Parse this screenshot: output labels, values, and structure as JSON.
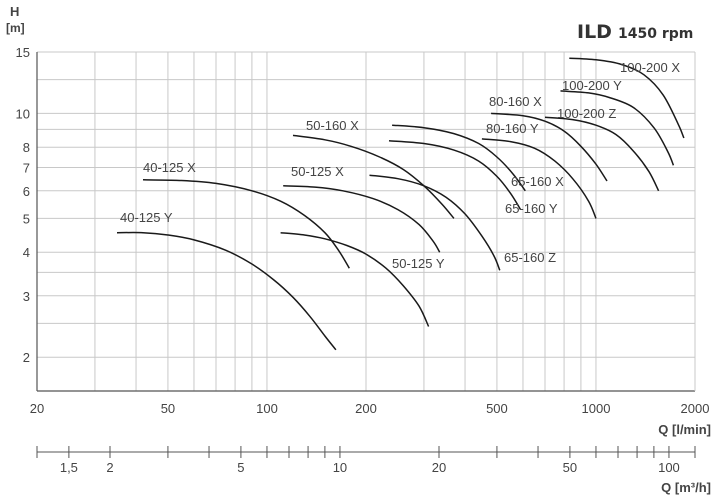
{
  "chart_data": {
    "type": "line",
    "title": "ILD",
    "subtitle": "1450 rpm",
    "ylabel": "H",
    "yunit": "[m]",
    "xlabel": "Q [l/min]",
    "x2label": "Q [m³/h]",
    "xscale": "log",
    "yscale": "log",
    "xlim": [
      20,
      2000
    ],
    "ylim": [
      1.6,
      15
    ],
    "x2lim": [
      1.2,
      120
    ],
    "grid": true,
    "xticks": [
      "20",
      "50",
      "100",
      "200",
      "500",
      "1000",
      "2000"
    ],
    "yticks": [
      "2",
      "3",
      "4",
      "5",
      "6",
      "7",
      "8",
      "10",
      "15"
    ],
    "x2ticks": [
      "1,5",
      "2",
      "5",
      "10",
      "20",
      "50",
      "100"
    ],
    "series": [
      {
        "name": "40-125 Y",
        "x": [
          35,
          42,
          50,
          60,
          75,
          90,
          105,
          120,
          135,
          150,
          162
        ],
        "y": [
          4.55,
          4.55,
          4.48,
          4.34,
          4.05,
          3.7,
          3.33,
          2.97,
          2.62,
          2.3,
          2.1
        ]
      },
      {
        "name": "40-125 X",
        "x": [
          42,
          55,
          70,
          90,
          110,
          130,
          150,
          165,
          178
        ],
        "y": [
          6.45,
          6.42,
          6.3,
          6.0,
          5.6,
          5.1,
          4.55,
          4.05,
          3.6
        ]
      },
      {
        "name": "50-125 Y",
        "x": [
          110,
          130,
          150,
          175,
          200,
          230,
          260,
          290,
          310
        ],
        "y": [
          4.55,
          4.48,
          4.37,
          4.18,
          3.95,
          3.6,
          3.2,
          2.8,
          2.45
        ]
      },
      {
        "name": "50-125 X",
        "x": [
          112,
          140,
          170,
          210,
          250,
          290,
          320,
          335
        ],
        "y": [
          6.2,
          6.15,
          6.0,
          5.7,
          5.3,
          4.8,
          4.3,
          4.0
        ]
      },
      {
        "name": "50-160 X",
        "x": [
          120,
          150,
          180,
          220,
          260,
          300,
          340,
          370
        ],
        "y": [
          8.65,
          8.4,
          8.05,
          7.5,
          6.9,
          6.2,
          5.5,
          5.0
        ]
      },
      {
        "name": "65-160 Z",
        "x": [
          205,
          250,
          300,
          350,
          400,
          450,
          490,
          510
        ],
        "y": [
          6.65,
          6.5,
          6.2,
          5.75,
          5.15,
          4.45,
          3.9,
          3.55
        ]
      },
      {
        "name": "65-160 Y",
        "x": [
          235,
          300,
          370,
          440,
          500,
          550,
          590
        ],
        "y": [
          8.35,
          8.2,
          7.85,
          7.3,
          6.6,
          5.9,
          5.3
        ]
      },
      {
        "name": "65-160 X",
        "x": [
          240,
          300,
          370,
          440,
          500,
          560,
          610
        ],
        "y": [
          9.25,
          9.1,
          8.75,
          8.2,
          7.5,
          6.7,
          6.0
        ]
      },
      {
        "name": "80-160 Y",
        "x": [
          450,
          550,
          650,
          750,
          850,
          950,
          1000
        ],
        "y": [
          8.45,
          8.3,
          7.95,
          7.3,
          6.5,
          5.6,
          5.0
        ]
      },
      {
        "name": "80-160 X",
        "x": [
          480,
          600,
          700,
          800,
          900,
          1000,
          1080
        ],
        "y": [
          10.0,
          9.85,
          9.5,
          8.9,
          8.05,
          7.15,
          6.4
        ]
      },
      {
        "name": "100-200 Z",
        "x": [
          700,
          850,
          1000,
          1150,
          1300,
          1450,
          1550
        ],
        "y": [
          9.75,
          9.6,
          9.25,
          8.7,
          7.8,
          6.8,
          6.0
        ]
      },
      {
        "name": "100-200 Y",
        "x": [
          780,
          950,
          1100,
          1300,
          1500,
          1650,
          1720
        ],
        "y": [
          11.6,
          11.45,
          11.1,
          10.4,
          9.1,
          7.8,
          7.1
        ]
      },
      {
        "name": "100-200 X",
        "x": [
          830,
          1000,
          1200,
          1400,
          1600,
          1780,
          1850
        ],
        "y": [
          14.4,
          14.25,
          13.8,
          12.9,
          11.3,
          9.3,
          8.5
        ]
      }
    ]
  }
}
